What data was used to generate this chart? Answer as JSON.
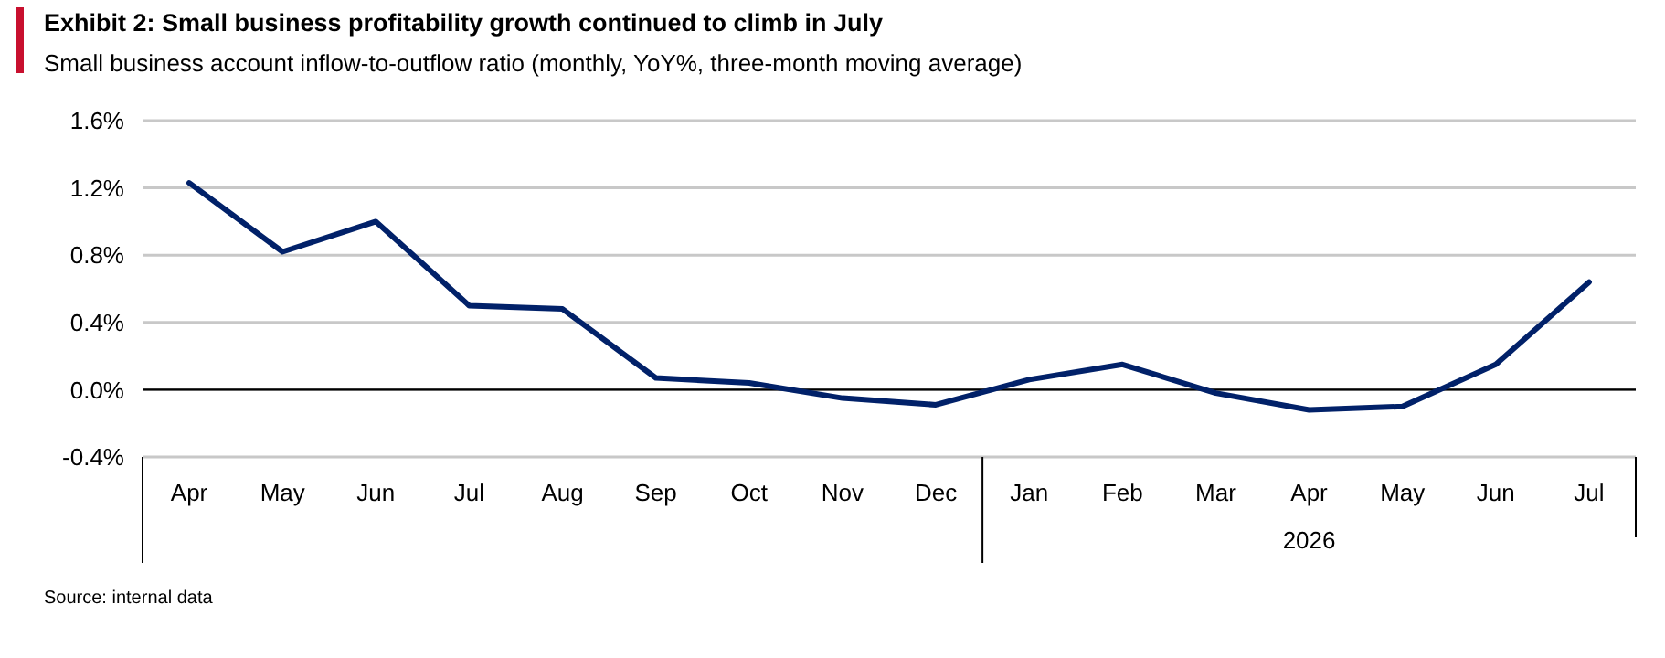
{
  "chart_data": {
    "type": "line",
    "title": "Exhibit 2: Small business profitability growth continued to climb in July",
    "subtitle": "Small business account inflow-to-outflow ratio (monthly, YoY%, three-month moving average)",
    "categories": [
      "Apr",
      "May",
      "Jun",
      "Jul",
      "Aug",
      "Sep",
      "Oct",
      "Nov",
      "Dec",
      "Jan",
      "Feb",
      "Mar",
      "Apr",
      "May",
      "Jun",
      "Jul"
    ],
    "series": [
      {
        "color": "#012169",
        "values": [
          1.23,
          0.82,
          1.0,
          0.5,
          0.48,
          0.07,
          0.04,
          -0.05,
          -0.09,
          0.06,
          0.15,
          -0.02,
          -0.12,
          -0.1,
          0.15,
          0.64
        ]
      }
    ],
    "ylim": [
      -0.4,
      1.6
    ],
    "yticks": [
      {
        "value": -0.4,
        "label": "-0.4%"
      },
      {
        "value": 0,
        "label": "0.0%"
      },
      {
        "value": 0.4,
        "label": "0.4%"
      },
      {
        "value": 0.8,
        "label": "0.8%"
      },
      {
        "value": 1.2,
        "label": "1.2%"
      },
      {
        "value": 1.6,
        "label": "1.6%"
      }
    ],
    "grid": "y",
    "line_style": "solid",
    "marker": "none",
    "ref_lines": [
      {
        "axis": "y",
        "value": 0,
        "color": "#000000"
      }
    ],
    "annotations": [
      "2026",
      "Source: internal data"
    ]
  }
}
